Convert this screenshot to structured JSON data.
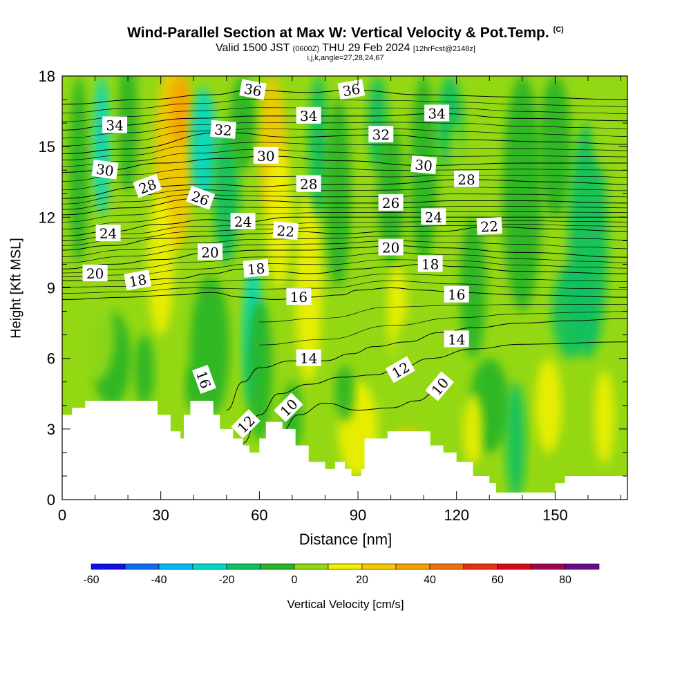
{
  "figure": {
    "title": "Wind-Parallel Section at Max W: Vertical Velocity & Pot.Temp.",
    "title_note": "(C)",
    "subtitle_main": "Valid 1500 JST",
    "subtitle_utc": "(0600Z)",
    "subtitle_date": "THU 29 Feb 2024",
    "subtitle_run": "[12hrFcst@2148z]",
    "indices": "i,j,k,angle=27,28,24,67"
  },
  "chart_data": {
    "type": "heatmap",
    "xlabel": "Distance [nm]",
    "ylabel": "Height [Kft MSL]",
    "xlim": [
      0,
      172
    ],
    "ylim": [
      0,
      18
    ],
    "x_ticks": [
      0,
      30,
      60,
      90,
      120,
      150
    ],
    "y_ticks": [
      0,
      3,
      6,
      9,
      12,
      15,
      18
    ],
    "x_minor_step": 10,
    "y_minor_step": 1,
    "colorbar": {
      "label": "Vertical Velocity [cm/s]",
      "bounds": [
        -60,
        90
      ],
      "step": 10,
      "tick_labels": [
        -60,
        -40,
        -20,
        0,
        20,
        40,
        60,
        80
      ],
      "colors": [
        "#1010e8",
        "#0a6cf0",
        "#00b8f8",
        "#00d8c8",
        "#10c060",
        "#28b428",
        "#94d814",
        "#f0f000",
        "#f8c800",
        "#f8a000",
        "#f07010",
        "#e83010",
        "#d80818",
        "#9c0850",
        "#6a0a8c"
      ]
    },
    "terrain_top_kft": [
      [
        0,
        3.6
      ],
      [
        3,
        3.9
      ],
      [
        7,
        4.2
      ],
      [
        26,
        4.2
      ],
      [
        29,
        3.6
      ],
      [
        33,
        2.9
      ],
      [
        36,
        2.6
      ],
      [
        37,
        3.6
      ],
      [
        39,
        4.2
      ],
      [
        45,
        4.2
      ],
      [
        46,
        3.6
      ],
      [
        48,
        3.0
      ],
      [
        52,
        2.6
      ],
      [
        55,
        2.3
      ],
      [
        57,
        2.0
      ],
      [
        60,
        2.6
      ],
      [
        62,
        3.3
      ],
      [
        67,
        3.0
      ],
      [
        71,
        2.3
      ],
      [
        75,
        1.6
      ],
      [
        80,
        1.3
      ],
      [
        83,
        1.6
      ],
      [
        86,
        1.3
      ],
      [
        88,
        1.0
      ],
      [
        91,
        1.3
      ],
      [
        92,
        2.6
      ],
      [
        99,
        2.9
      ],
      [
        107,
        2.9
      ],
      [
        112,
        2.3
      ],
      [
        116,
        2.0
      ],
      [
        120,
        1.6
      ],
      [
        125,
        1.0
      ],
      [
        130,
        0.7
      ],
      [
        132,
        0.3
      ],
      [
        147,
        0.3
      ],
      [
        150,
        0.7
      ],
      [
        153,
        1.0
      ],
      [
        172,
        1.0
      ]
    ],
    "potential_temperature_labels": [
      {
        "value": "36",
        "x": 58,
        "y": 17.4,
        "angle": 10
      },
      {
        "value": "36",
        "x": 88,
        "y": 17.4,
        "angle": -10
      },
      {
        "value": "34",
        "x": 16,
        "y": 15.9,
        "angle": 0
      },
      {
        "value": "34",
        "x": 75,
        "y": 16.3,
        "angle": 0
      },
      {
        "value": "34",
        "x": 114,
        "y": 16.4,
        "angle": 0
      },
      {
        "value": "32",
        "x": 49,
        "y": 15.7,
        "angle": 5
      },
      {
        "value": "32",
        "x": 97,
        "y": 15.5,
        "angle": 0
      },
      {
        "value": "30",
        "x": 13,
        "y": 14.0,
        "angle": 8
      },
      {
        "value": "30",
        "x": 62,
        "y": 14.6,
        "angle": 0
      },
      {
        "value": "30",
        "x": 110,
        "y": 14.2,
        "angle": 5
      },
      {
        "value": "28",
        "x": 26,
        "y": 13.3,
        "angle": -20
      },
      {
        "value": "28",
        "x": 75,
        "y": 13.4,
        "angle": 0
      },
      {
        "value": "28",
        "x": 123,
        "y": 13.6,
        "angle": 0
      },
      {
        "value": "26",
        "x": 42,
        "y": 12.8,
        "angle": 20
      },
      {
        "value": "26",
        "x": 100,
        "y": 12.6,
        "angle": 0
      },
      {
        "value": "24",
        "x": 14,
        "y": 11.3,
        "angle": 0
      },
      {
        "value": "24",
        "x": 55,
        "y": 11.8,
        "angle": 0
      },
      {
        "value": "24",
        "x": 113,
        "y": 12.0,
        "angle": 0
      },
      {
        "value": "22",
        "x": 68,
        "y": 11.4,
        "angle": 5
      },
      {
        "value": "22",
        "x": 130,
        "y": 11.6,
        "angle": -3
      },
      {
        "value": "20",
        "x": 10,
        "y": 9.6,
        "angle": 0
      },
      {
        "value": "20",
        "x": 45,
        "y": 10.5,
        "angle": 0
      },
      {
        "value": "20",
        "x": 100,
        "y": 10.7,
        "angle": 0
      },
      {
        "value": "18",
        "x": 23,
        "y": 9.3,
        "angle": -10
      },
      {
        "value": "18",
        "x": 59,
        "y": 9.8,
        "angle": -5
      },
      {
        "value": "18",
        "x": 112,
        "y": 10.0,
        "angle": 0
      },
      {
        "value": "16",
        "x": 72,
        "y": 8.6,
        "angle": 0
      },
      {
        "value": "16",
        "x": 120,
        "y": 8.7,
        "angle": 0
      },
      {
        "value": "16",
        "x": 43,
        "y": 5.1,
        "angle": 70
      },
      {
        "value": "14",
        "x": 75,
        "y": 6.0,
        "angle": 0
      },
      {
        "value": "14",
        "x": 120,
        "y": 6.8,
        "angle": 0
      },
      {
        "value": "12",
        "x": 103,
        "y": 5.5,
        "angle": -30
      },
      {
        "value": "12",
        "x": 56,
        "y": 3.2,
        "angle": -45
      },
      {
        "value": "10",
        "x": 115,
        "y": 4.8,
        "angle": -50
      },
      {
        "value": "10",
        "x": 69,
        "y": 3.9,
        "angle": -45
      }
    ],
    "isentrope_levels": [
      {
        "theta": 10,
        "points": [
          [
            60,
            1.8
          ],
          [
            66,
            2.8
          ],
          [
            72,
            3.6
          ],
          [
            80,
            4.1
          ],
          [
            90,
            3.8
          ],
          [
            100,
            3.9
          ],
          [
            108,
            4.2
          ],
          [
            114,
            4.6
          ],
          [
            117,
            5.2
          ]
        ]
      },
      {
        "theta": 12,
        "points": [
          [
            55,
            2.4
          ],
          [
            60,
            3.6
          ],
          [
            66,
            4.5
          ],
          [
            75,
            4.9
          ],
          [
            85,
            5.2
          ],
          [
            95,
            5.3
          ],
          [
            103,
            5.6
          ],
          [
            112,
            6.0
          ],
          [
            125,
            6.4
          ],
          [
            140,
            6.6
          ],
          [
            172,
            6.7
          ]
        ]
      },
      {
        "theta": 14,
        "points": [
          [
            50,
            3.8
          ],
          [
            55,
            5.0
          ],
          [
            60,
            5.6
          ],
          [
            70,
            5.9
          ],
          [
            80,
            5.9
          ],
          [
            88,
            6.2
          ],
          [
            95,
            6.5
          ],
          [
            105,
            6.7
          ],
          [
            115,
            7.1
          ],
          [
            125,
            7.3
          ],
          [
            140,
            7.5
          ],
          [
            155,
            7.6
          ],
          [
            172,
            7.7
          ]
        ]
      },
      {
        "theta": 16,
        "points": [
          [
            0,
            8.5
          ],
          [
            20,
            8.6
          ],
          [
            35,
            8.7
          ],
          [
            45,
            8.8
          ],
          [
            55,
            8.6
          ],
          [
            65,
            8.5
          ],
          [
            75,
            8.6
          ],
          [
            85,
            8.7
          ],
          [
            90,
            8.9
          ],
          [
            100,
            9.0
          ],
          [
            110,
            8.9
          ],
          [
            120,
            8.8
          ],
          [
            140,
            8.7
          ],
          [
            172,
            8.6
          ]
        ]
      },
      {
        "theta": 18,
        "points": [
          [
            0,
            9.3
          ],
          [
            20,
            9.3
          ],
          [
            35,
            9.4
          ],
          [
            45,
            9.6
          ],
          [
            55,
            9.8
          ],
          [
            65,
            9.7
          ],
          [
            75,
            9.6
          ],
          [
            90,
            9.8
          ],
          [
            100,
            9.9
          ],
          [
            110,
            10.0
          ],
          [
            120,
            9.9
          ],
          [
            140,
            9.7
          ],
          [
            172,
            9.6
          ]
        ]
      },
      {
        "theta": 20,
        "points": [
          [
            0,
            9.8
          ],
          [
            15,
            10.0
          ],
          [
            30,
            10.2
          ],
          [
            45,
            10.5
          ],
          [
            60,
            10.6
          ],
          [
            75,
            10.6
          ],
          [
            90,
            10.7
          ],
          [
            100,
            10.8
          ],
          [
            115,
            10.7
          ],
          [
            140,
            10.5
          ],
          [
            172,
            10.3
          ]
        ]
      },
      {
        "theta": 22,
        "points": [
          [
            0,
            10.6
          ],
          [
            15,
            10.8
          ],
          [
            30,
            11.1
          ],
          [
            45,
            11.2
          ],
          [
            60,
            11.3
          ],
          [
            70,
            11.4
          ],
          [
            85,
            11.3
          ],
          [
            100,
            11.4
          ],
          [
            115,
            11.4
          ],
          [
            130,
            11.6
          ],
          [
            150,
            11.5
          ],
          [
            172,
            11.4
          ]
        ]
      },
      {
        "theta": 24,
        "points": [
          [
            0,
            11.2
          ],
          [
            15,
            11.4
          ],
          [
            30,
            11.7
          ],
          [
            45,
            11.9
          ],
          [
            55,
            11.8
          ],
          [
            70,
            12.0
          ],
          [
            90,
            12.0
          ],
          [
            113,
            12.0
          ],
          [
            130,
            12.0
          ],
          [
            150,
            12.0
          ],
          [
            172,
            12.0
          ]
        ]
      },
      {
        "theta": 26,
        "points": [
          [
            0,
            12.1
          ],
          [
            20,
            12.4
          ],
          [
            42,
            12.8
          ],
          [
            60,
            12.7
          ],
          [
            80,
            12.6
          ],
          [
            100,
            12.6
          ],
          [
            120,
            12.7
          ],
          [
            140,
            12.7
          ],
          [
            172,
            12.6
          ]
        ]
      },
      {
        "theta": 28,
        "points": [
          [
            0,
            12.8
          ],
          [
            26,
            13.3
          ],
          [
            45,
            13.4
          ],
          [
            60,
            13.3
          ],
          [
            75,
            13.4
          ],
          [
            95,
            13.4
          ],
          [
            123,
            13.6
          ],
          [
            150,
            13.5
          ],
          [
            172,
            13.4
          ]
        ]
      },
      {
        "theta": 30,
        "points": [
          [
            0,
            13.9
          ],
          [
            13,
            14.0
          ],
          [
            30,
            14.3
          ],
          [
            50,
            14.5
          ],
          [
            62,
            14.6
          ],
          [
            85,
            14.4
          ],
          [
            110,
            14.2
          ],
          [
            140,
            14.3
          ],
          [
            172,
            14.3
          ]
        ]
      },
      {
        "theta": 32,
        "points": [
          [
            0,
            14.7
          ],
          [
            20,
            14.9
          ],
          [
            49,
            15.6
          ],
          [
            70,
            15.4
          ],
          [
            97,
            15.5
          ],
          [
            120,
            15.3
          ],
          [
            150,
            15.2
          ],
          [
            172,
            15.1
          ]
        ]
      },
      {
        "theta": 34,
        "points": [
          [
            0,
            15.7
          ],
          [
            16,
            15.9
          ],
          [
            40,
            16.2
          ],
          [
            60,
            16.3
          ],
          [
            75,
            16.3
          ],
          [
            95,
            16.3
          ],
          [
            114,
            16.4
          ],
          [
            140,
            16.2
          ],
          [
            172,
            16.1
          ]
        ]
      },
      {
        "theta": 36,
        "points": [
          [
            0,
            16.8
          ],
          [
            25,
            17.0
          ],
          [
            45,
            17.2
          ],
          [
            58,
            17.4
          ],
          [
            75,
            17.3
          ],
          [
            88,
            17.4
          ],
          [
            110,
            17.2
          ],
          [
            140,
            17.1
          ],
          [
            172,
            17.0
          ]
        ]
      }
    ]
  },
  "colors": {
    "background_field": "#94d814"
  }
}
